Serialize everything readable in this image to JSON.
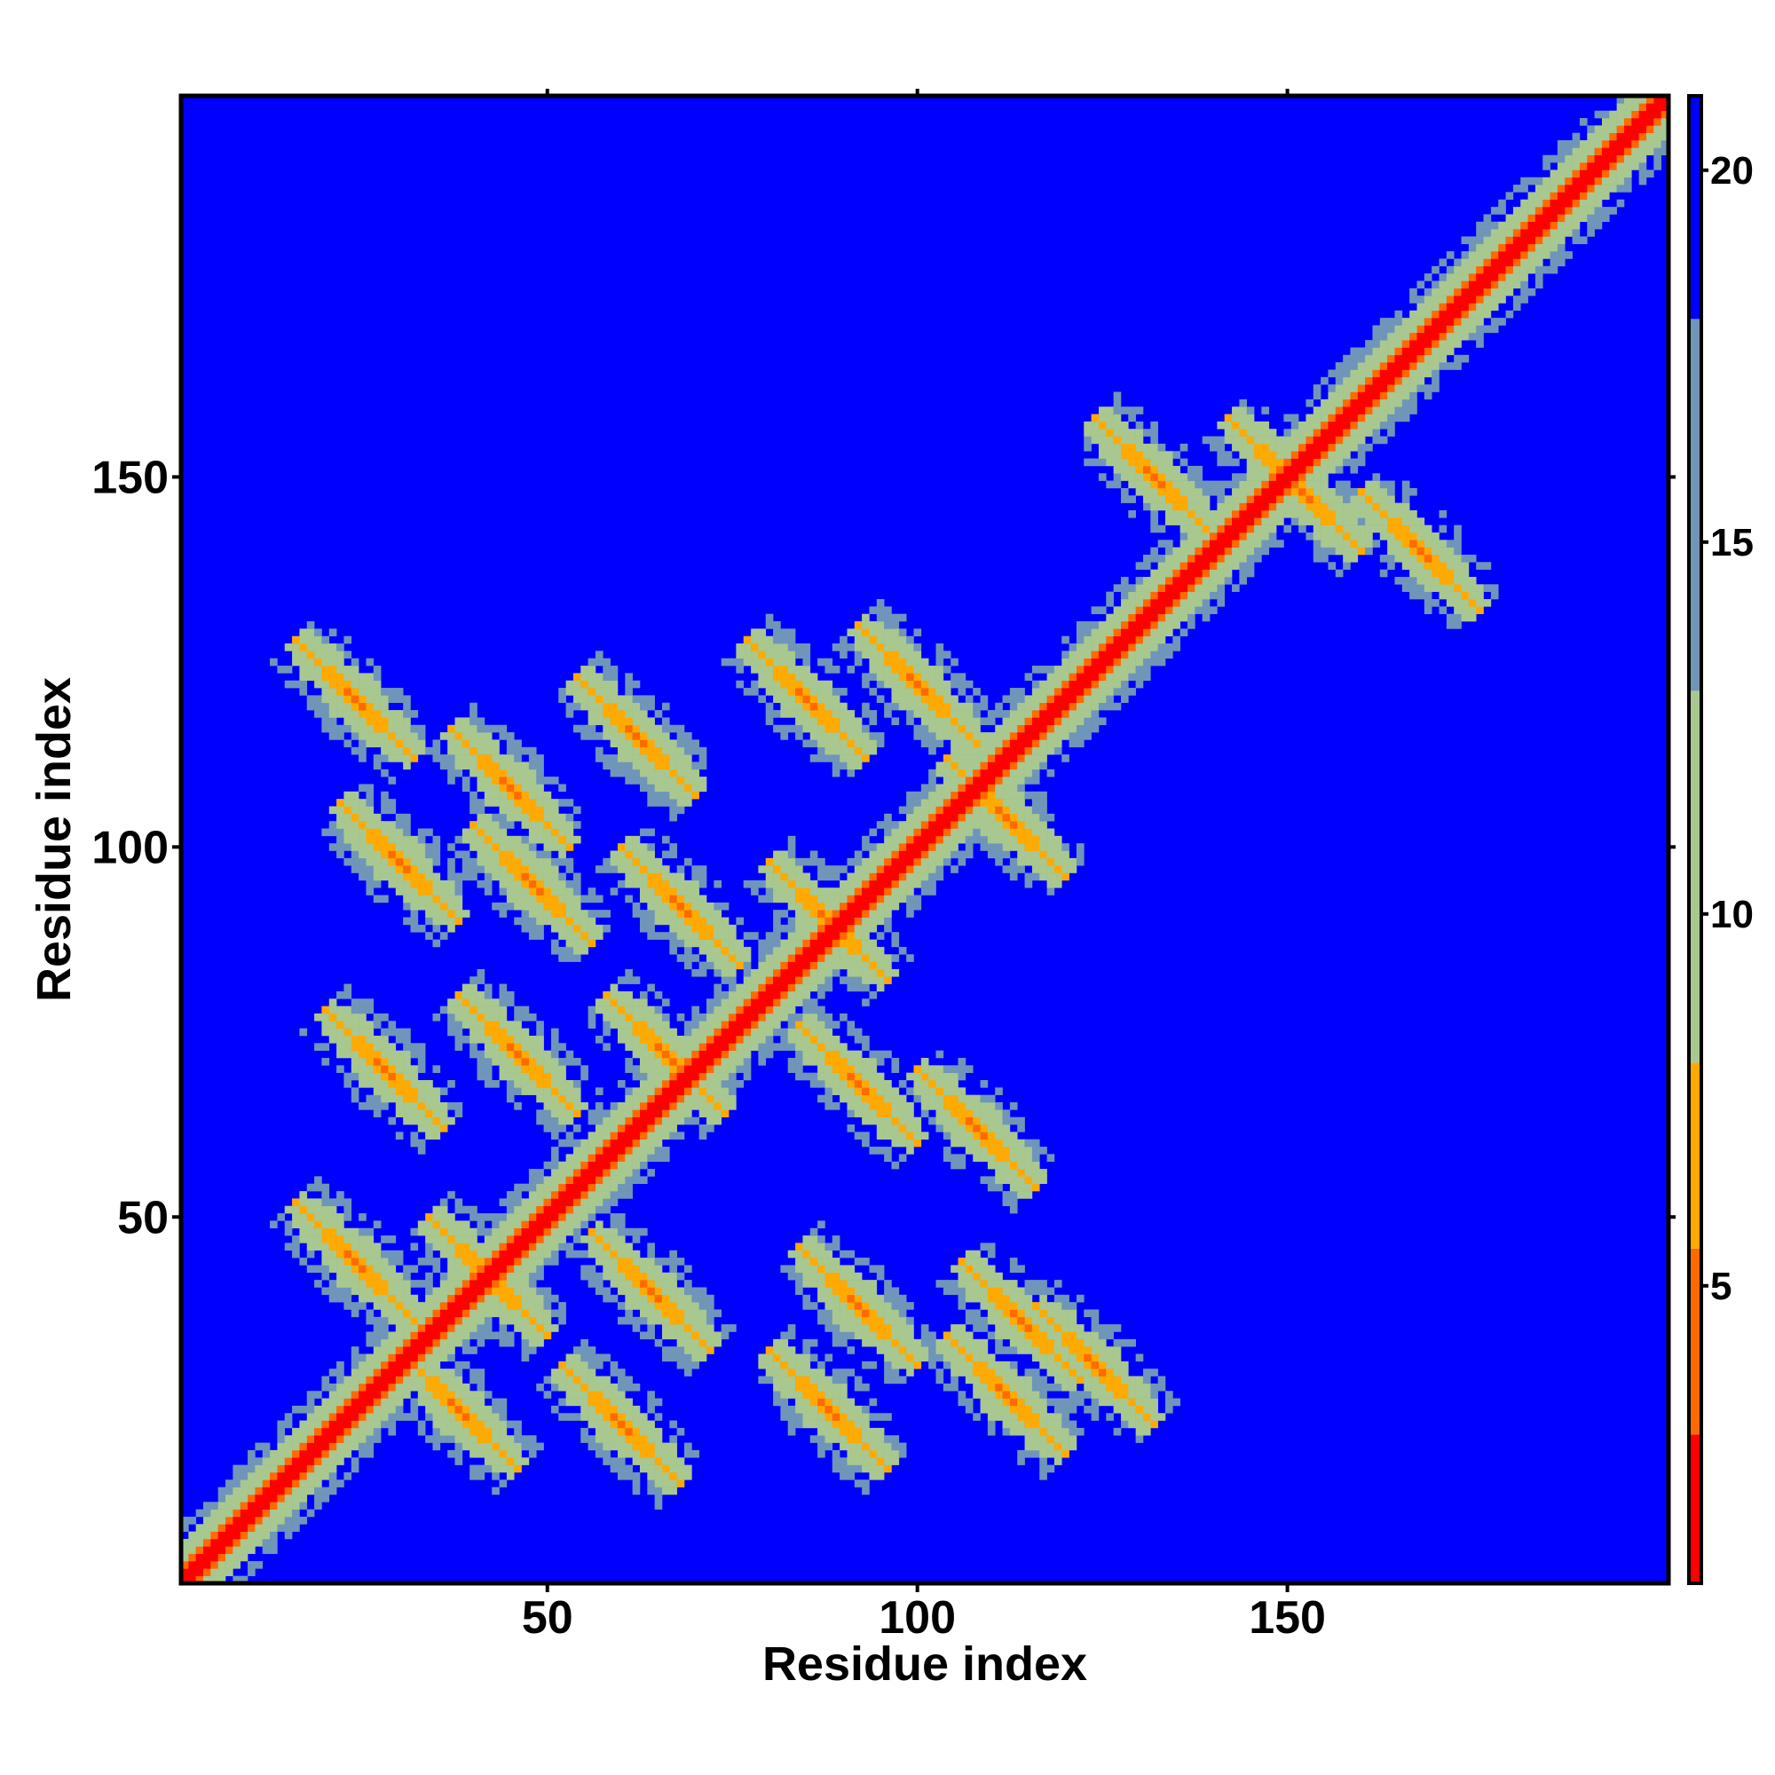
{
  "chart_data": {
    "type": "heatmap",
    "title": "",
    "xlabel": "Residue index",
    "ylabel": "Residue index",
    "xlim": [
      1,
      201
    ],
    "ylim": [
      1,
      201
    ],
    "x_ticks": [
      50,
      100,
      150
    ],
    "y_ticks": [
      50,
      100,
      150
    ],
    "colorbar": {
      "ticks": [
        5,
        10,
        15,
        20
      ],
      "range": [
        1,
        21
      ],
      "colors": {
        "very_close": "#ff0000",
        "close": "#ff6a00",
        "near": "#ffaa00",
        "mid": "#a8c890",
        "far_mid": "#6f96b8",
        "far": "#0000ff"
      }
    },
    "description_values": {
      "diagonal_distance": 1,
      "background_distance": 21
    },
    "helix_centers": [
      [
        24,
        120
      ],
      [
        45,
        108
      ],
      [
        62,
        115
      ],
      [
        85,
        120
      ],
      [
        100,
        122
      ],
      [
        30,
        98
      ],
      [
        48,
        95
      ],
      [
        68,
        92
      ],
      [
        88,
        90
      ],
      [
        112,
        104
      ],
      [
        28,
        70
      ],
      [
        46,
        72
      ],
      [
        66,
        72
      ],
      [
        92,
        68
      ],
      [
        108,
        62
      ],
      [
        24,
        44
      ],
      [
        42,
        42
      ],
      [
        64,
        40
      ],
      [
        92,
        38
      ],
      [
        114,
        36
      ],
      [
        38,
        24
      ],
      [
        60,
        22
      ],
      [
        88,
        24
      ],
      [
        112,
        26
      ],
      [
        124,
        30
      ],
      [
        150,
        150
      ],
      [
        152,
        148
      ],
      [
        132,
        150
      ],
      [
        168,
        140
      ]
    ]
  }
}
